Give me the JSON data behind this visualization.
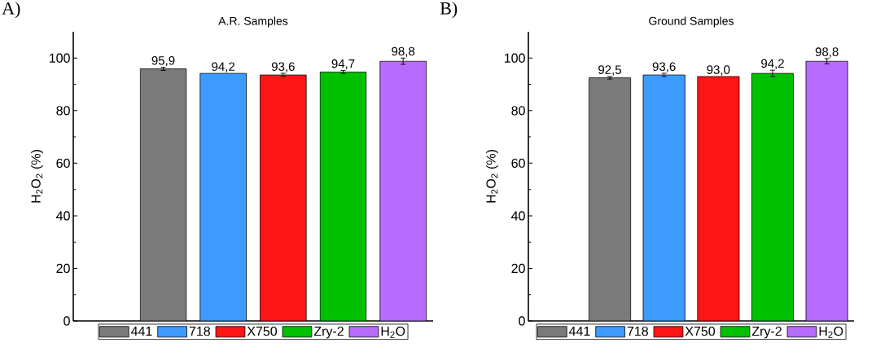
{
  "chart_data": [
    {
      "type": "bar",
      "title": "A.R. Samples",
      "ylabel": "H$_{2}$O$_{2}$ (%)",
      "annotations": [
        "A)"
      ],
      "categories": [
        null
      ],
      "series": [
        {
          "name": "441",
          "color": "#7a7a7a",
          "values": [
            95.9
          ],
          "errors": [
            0.6
          ],
          "value_labels": [
            "95,9"
          ]
        },
        {
          "name": "718",
          "color": "#3d9bff",
          "values": [
            94.2
          ],
          "errors": [
            null
          ],
          "value_labels": [
            "94,2"
          ]
        },
        {
          "name": "X750",
          "color": "#ff1515",
          "values": [
            93.6
          ],
          "errors": [
            0.6
          ],
          "value_labels": [
            "93,6"
          ]
        },
        {
          "name": "Zry-2",
          "color": "#00c000",
          "values": [
            94.7
          ],
          "errors": [
            0.6
          ],
          "value_labels": [
            "94,7"
          ]
        },
        {
          "name": "H$_{2}$O",
          "color": "#b76bff",
          "values": [
            98.8
          ],
          "errors": [
            1.2
          ],
          "value_labels": [
            "98,8"
          ]
        }
      ],
      "ylim": [
        0,
        110
      ],
      "yticks": [
        0,
        20,
        40,
        60,
        80,
        100
      ],
      "tick_labels": "y",
      "legend": "bottom"
    },
    {
      "type": "bar",
      "title": "Ground Samples",
      "ylabel": "H$_{2}$O$_{2}$ (%)",
      "annotations": [
        "B)"
      ],
      "categories": [
        null
      ],
      "series": [
        {
          "name": "441",
          "color": "#7a7a7a",
          "values": [
            92.5
          ],
          "errors": [
            0.5
          ],
          "value_labels": [
            "92,5"
          ]
        },
        {
          "name": "718",
          "color": "#3d9bff",
          "values": [
            93.6
          ],
          "errors": [
            0.6
          ],
          "value_labels": [
            "93,6"
          ]
        },
        {
          "name": "X750",
          "color": "#ff1515",
          "values": [
            93.0
          ],
          "errors": [
            null
          ],
          "value_labels": [
            "93,0"
          ]
        },
        {
          "name": "Zry-2",
          "color": "#00c000",
          "values": [
            94.2
          ],
          "errors": [
            1.2
          ],
          "value_labels": [
            "94,2"
          ]
        },
        {
          "name": "H$_{2}$O",
          "color": "#b76bff",
          "values": [
            98.8
          ],
          "errors": [
            1.0
          ],
          "value_labels": [
            "98,8"
          ]
        }
      ],
      "ylim": [
        0,
        110
      ],
      "yticks": [
        0,
        20,
        40,
        60,
        80,
        100
      ],
      "tick_labels": "y",
      "legend": "bottom"
    }
  ]
}
